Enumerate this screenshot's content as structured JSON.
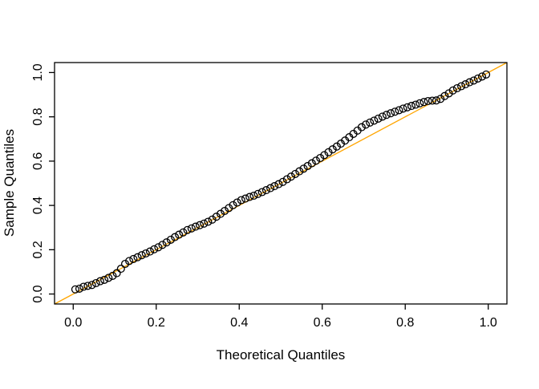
{
  "chart_data": {
    "type": "scatter",
    "title": "",
    "xlabel": "Theoretical Quantiles",
    "ylabel": "Sample Quantiles",
    "xlim": [
      -0.045,
      1.045
    ],
    "ylim": [
      -0.045,
      1.045
    ],
    "grid": false,
    "legend": null,
    "xticks": {
      "values": [
        0,
        0.2,
        0.4,
        0.6,
        0.8,
        1.0
      ],
      "labels": [
        "0.0",
        "0.2",
        "0.4",
        "0.6",
        "0.8",
        "1.0"
      ]
    },
    "yticks": {
      "values": [
        0,
        0.2,
        0.4,
        0.6,
        0.8,
        1.0
      ],
      "labels": [
        "0.0",
        "0.2",
        "0.4",
        "0.6",
        "0.8",
        "1.0"
      ]
    },
    "point_style": {
      "shape": "open-circle",
      "color": "#000000",
      "radius": 4.4,
      "stroke_width": 1.3
    },
    "reference_line": {
      "slope": 1,
      "intercept": 0,
      "color": "#FFA500",
      "width": 1.3
    },
    "x": [
      0.005,
      0.015,
      0.025,
      0.035,
      0.045,
      0.055,
      0.065,
      0.075,
      0.085,
      0.095,
      0.105,
      0.115,
      0.125,
      0.135,
      0.145,
      0.155,
      0.165,
      0.175,
      0.185,
      0.195,
      0.205,
      0.215,
      0.225,
      0.235,
      0.245,
      0.255,
      0.265,
      0.275,
      0.285,
      0.295,
      0.305,
      0.315,
      0.325,
      0.335,
      0.345,
      0.355,
      0.365,
      0.375,
      0.385,
      0.395,
      0.405,
      0.415,
      0.425,
      0.435,
      0.445,
      0.455,
      0.465,
      0.475,
      0.485,
      0.495,
      0.505,
      0.515,
      0.525,
      0.535,
      0.545,
      0.555,
      0.565,
      0.575,
      0.585,
      0.595,
      0.605,
      0.615,
      0.625,
      0.635,
      0.645,
      0.655,
      0.665,
      0.675,
      0.685,
      0.695,
      0.705,
      0.715,
      0.725,
      0.735,
      0.745,
      0.755,
      0.765,
      0.775,
      0.785,
      0.795,
      0.805,
      0.815,
      0.825,
      0.835,
      0.845,
      0.855,
      0.865,
      0.875,
      0.885,
      0.895,
      0.905,
      0.915,
      0.925,
      0.935,
      0.945,
      0.955,
      0.965,
      0.975,
      0.985,
      0.995
    ],
    "y": [
      0.021,
      0.024,
      0.033,
      0.037,
      0.041,
      0.049,
      0.058,
      0.064,
      0.073,
      0.082,
      0.094,
      0.114,
      0.136,
      0.149,
      0.158,
      0.166,
      0.175,
      0.183,
      0.192,
      0.202,
      0.211,
      0.222,
      0.233,
      0.245,
      0.257,
      0.268,
      0.278,
      0.289,
      0.296,
      0.304,
      0.311,
      0.318,
      0.326,
      0.336,
      0.349,
      0.362,
      0.375,
      0.388,
      0.401,
      0.413,
      0.424,
      0.431,
      0.438,
      0.444,
      0.452,
      0.46,
      0.469,
      0.478,
      0.487,
      0.496,
      0.506,
      0.518,
      0.53,
      0.542,
      0.554,
      0.566,
      0.578,
      0.59,
      0.602,
      0.614,
      0.627,
      0.64,
      0.653,
      0.666,
      0.679,
      0.693,
      0.708,
      0.723,
      0.738,
      0.753,
      0.765,
      0.774,
      0.783,
      0.792,
      0.801,
      0.809,
      0.816,
      0.823,
      0.83,
      0.837,
      0.843,
      0.849,
      0.855,
      0.861,
      0.867,
      0.871,
      0.873,
      0.874,
      0.881,
      0.894,
      0.906,
      0.919,
      0.929,
      0.938,
      0.947,
      0.956,
      0.964,
      0.973,
      0.982,
      0.991
    ]
  }
}
